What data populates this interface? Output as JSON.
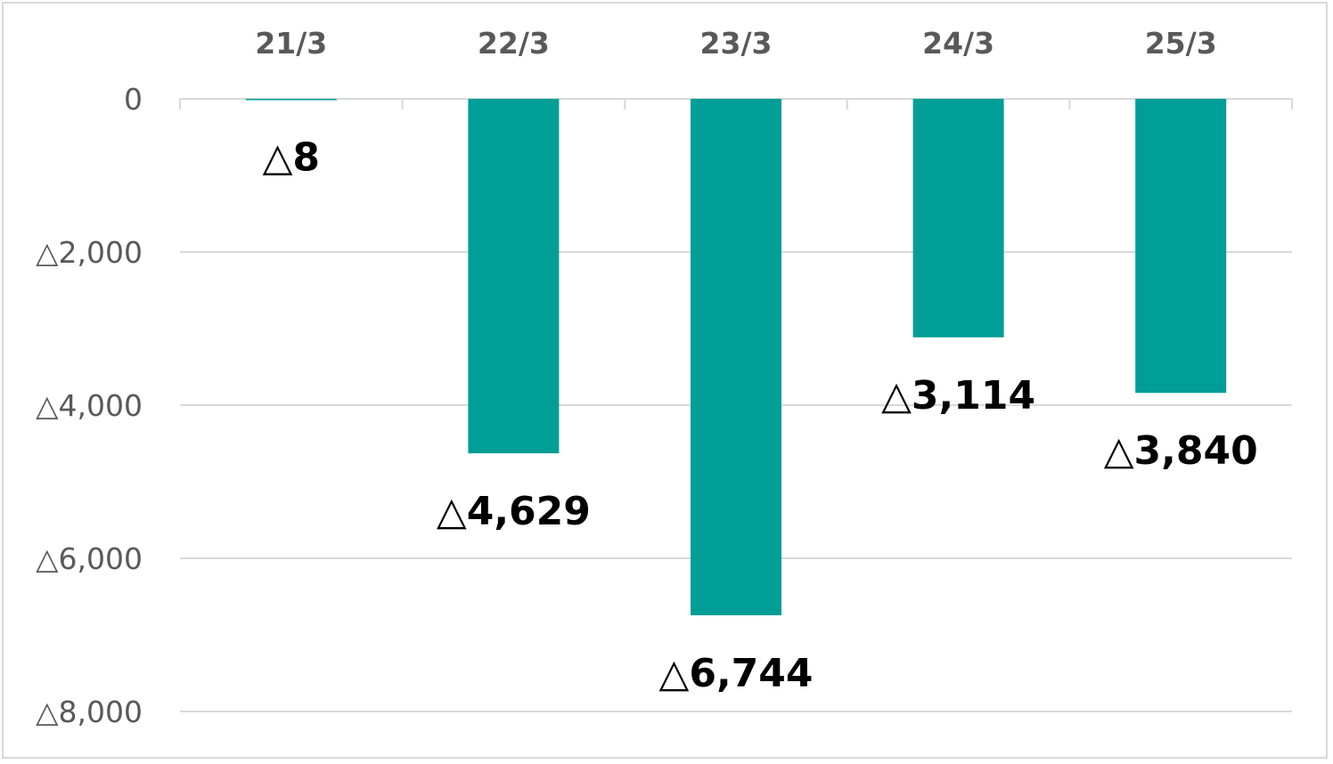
{
  "chart_data": {
    "type": "bar",
    "title": "",
    "xlabel": "",
    "ylabel": "",
    "categories": [
      "21/3",
      "22/3",
      "23/3",
      "24/3",
      "25/3"
    ],
    "values": [
      -8,
      -4629,
      -6744,
      -3114,
      -3840
    ],
    "data_labels": [
      "△8",
      "△4,629",
      "△6,744",
      "△3,114",
      "△3,840"
    ],
    "ylim": [
      -8000,
      0
    ],
    "y_ticks": [
      0,
      -2000,
      -4000,
      -6000,
      -8000
    ],
    "y_tick_labels": [
      "0",
      "△2,000",
      "△4,000",
      "△6,000",
      "△8,000"
    ],
    "category_axis_position": "top",
    "grid": true,
    "legend": "none",
    "colors": {
      "bar": "#009E96",
      "grid": "#D9D9D9",
      "axis_text": "#595959",
      "data_label": "#000000"
    }
  }
}
